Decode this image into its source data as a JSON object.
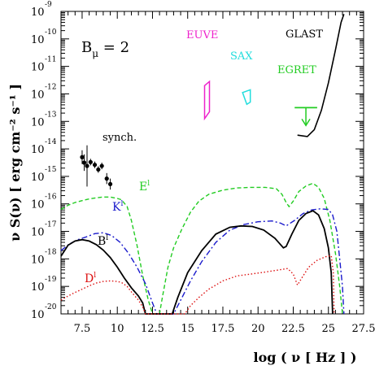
{
  "chart_data": {
    "type": "line",
    "ylabel": "ν S(ν) [ erg cm⁻² s⁻¹ ]",
    "xlabel": "log ( ν [ Hz ] )",
    "xlim": [
      6,
      27.5
    ],
    "ylim": [
      -20,
      -9
    ],
    "log_y": true,
    "grid": false,
    "x_ticks": [
      7.5,
      10,
      12.5,
      15,
      17.5,
      20,
      22.5,
      25,
      27.5
    ],
    "x_tick_labels": [
      "7.5",
      "10",
      "12.5",
      "15",
      "17.5",
      "20",
      "22.5",
      "25",
      "27.5"
    ],
    "y_tick_exponents": [
      -20,
      -19,
      -18,
      -17,
      -16,
      -15,
      -14,
      -13,
      -12,
      -11,
      -10,
      -9
    ],
    "y_tick_base": "10",
    "annotation": {
      "main": "B",
      "sub": "μ",
      "rest": " = 2"
    },
    "labels": {
      "synch": "synch.",
      "euve": "EUVE",
      "sax": "SAX",
      "egret": "EGRET",
      "glast": "GLAST",
      "E": "E",
      "K": "K",
      "B": "B",
      "D": "D",
      "curve_superscript": "l"
    },
    "colors": {
      "E": "#22cc22",
      "K": "#1a1acc",
      "B": "#000000",
      "D": "#dd1111",
      "euve": "#ee22cc",
      "sax": "#22dddd",
      "egret": "#22cc22",
      "glast": "#000000",
      "synch": "#000000"
    },
    "series": [
      {
        "name": "E",
        "style": "dashed",
        "points": [
          [
            6,
            -16.2
          ],
          [
            6.5,
            -16.05
          ],
          [
            7,
            -15.95
          ],
          [
            7.5,
            -15.88
          ],
          [
            8,
            -15.82
          ],
          [
            8.5,
            -15.78
          ],
          [
            9,
            -15.75
          ],
          [
            9.5,
            -15.75
          ],
          [
            10,
            -15.8
          ],
          [
            10.3,
            -15.85
          ],
          [
            10.7,
            -16.1
          ],
          [
            11,
            -16.6
          ],
          [
            11.4,
            -17.5
          ],
          [
            11.8,
            -18.6
          ],
          [
            12.2,
            -19.5
          ],
          [
            12.5,
            -20
          ],
          [
            13,
            -20
          ],
          [
            13.2,
            -19.4
          ],
          [
            13.6,
            -18.3
          ],
          [
            14,
            -17.6
          ],
          [
            14.6,
            -16.9
          ],
          [
            15.2,
            -16.3
          ],
          [
            15.8,
            -15.9
          ],
          [
            16.5,
            -15.65
          ],
          [
            17.5,
            -15.5
          ],
          [
            18.5,
            -15.42
          ],
          [
            19.5,
            -15.4
          ],
          [
            20.5,
            -15.4
          ],
          [
            21.3,
            -15.45
          ],
          [
            21.7,
            -15.65
          ],
          [
            22,
            -15.95
          ],
          [
            22.2,
            -16.1
          ],
          [
            22.5,
            -15.9
          ],
          [
            22.9,
            -15.55
          ],
          [
            23.4,
            -15.35
          ],
          [
            23.9,
            -15.25
          ],
          [
            24.3,
            -15.4
          ],
          [
            24.7,
            -15.8
          ],
          [
            25.1,
            -16.6
          ],
          [
            25.5,
            -17.8
          ],
          [
            25.8,
            -19
          ],
          [
            26,
            -20
          ]
        ]
      },
      {
        "name": "K",
        "style": "dashdot",
        "points": [
          [
            6,
            -17.7
          ],
          [
            6.6,
            -17.45
          ],
          [
            7.2,
            -17.3
          ],
          [
            7.8,
            -17.2
          ],
          [
            8.4,
            -17.08
          ],
          [
            9,
            -17.05
          ],
          [
            9.6,
            -17.15
          ],
          [
            10.2,
            -17.4
          ],
          [
            10.8,
            -17.8
          ],
          [
            11.4,
            -18.3
          ],
          [
            12,
            -18.9
          ],
          [
            12.5,
            -19.6
          ],
          [
            12.8,
            -20
          ],
          [
            14,
            -20
          ],
          [
            14.5,
            -19.5
          ],
          [
            15.2,
            -18.8
          ],
          [
            16,
            -18.1
          ],
          [
            17,
            -17.4
          ],
          [
            18,
            -16.95
          ],
          [
            19,
            -16.75
          ],
          [
            20,
            -16.65
          ],
          [
            21,
            -16.62
          ],
          [
            21.6,
            -16.7
          ],
          [
            22,
            -16.8
          ],
          [
            22.6,
            -16.6
          ],
          [
            23.2,
            -16.35
          ],
          [
            23.8,
            -16.22
          ],
          [
            24.4,
            -16.18
          ],
          [
            25,
            -16.2
          ],
          [
            25.3,
            -16.4
          ],
          [
            25.6,
            -17
          ],
          [
            25.8,
            -18
          ],
          [
            26,
            -19
          ],
          [
            26.1,
            -20
          ]
        ]
      },
      {
        "name": "B",
        "style": "solid",
        "points": [
          [
            6,
            -17.9
          ],
          [
            6.5,
            -17.5
          ],
          [
            7,
            -17.35
          ],
          [
            7.5,
            -17.3
          ],
          [
            8,
            -17.35
          ],
          [
            8.5,
            -17.48
          ],
          [
            9,
            -17.68
          ],
          [
            9.5,
            -17.95
          ],
          [
            10,
            -18.3
          ],
          [
            10.5,
            -18.7
          ],
          [
            11,
            -19.05
          ],
          [
            11.5,
            -19.35
          ],
          [
            11.8,
            -19.6
          ],
          [
            12,
            -20
          ],
          [
            13.9,
            -20
          ],
          [
            14.3,
            -19.4
          ],
          [
            15,
            -18.5
          ],
          [
            16,
            -17.7
          ],
          [
            17,
            -17.1
          ],
          [
            18,
            -16.85
          ],
          [
            18.8,
            -16.8
          ],
          [
            19.6,
            -16.82
          ],
          [
            20.4,
            -16.95
          ],
          [
            21.2,
            -17.25
          ],
          [
            21.8,
            -17.6
          ],
          [
            22,
            -17.55
          ],
          [
            22.4,
            -17.1
          ],
          [
            22.9,
            -16.6
          ],
          [
            23.4,
            -16.35
          ],
          [
            23.9,
            -16.25
          ],
          [
            24.3,
            -16.4
          ],
          [
            24.7,
            -16.9
          ],
          [
            25,
            -17.6
          ],
          [
            25.2,
            -18.5
          ],
          [
            25.3,
            -20
          ]
        ]
      },
      {
        "name": "D",
        "style": "dotted",
        "points": [
          [
            6,
            -19.5
          ],
          [
            6.5,
            -19.35
          ],
          [
            7,
            -19.22
          ],
          [
            7.5,
            -19.1
          ],
          [
            8,
            -18.98
          ],
          [
            8.5,
            -18.88
          ],
          [
            9,
            -18.82
          ],
          [
            9.5,
            -18.8
          ],
          [
            10,
            -18.82
          ],
          [
            10.3,
            -18.86
          ],
          [
            10.7,
            -19.0
          ],
          [
            11,
            -19.2
          ],
          [
            11.5,
            -19.5
          ],
          [
            11.8,
            -19.75
          ],
          [
            12,
            -20
          ],
          [
            14.8,
            -20
          ],
          [
            15.2,
            -19.7
          ],
          [
            15.8,
            -19.4
          ],
          [
            16.5,
            -19.1
          ],
          [
            17.5,
            -18.8
          ],
          [
            18.5,
            -18.62
          ],
          [
            19.5,
            -18.55
          ],
          [
            20.5,
            -18.48
          ],
          [
            21.5,
            -18.4
          ],
          [
            22.1,
            -18.35
          ],
          [
            22.5,
            -18.55
          ],
          [
            22.8,
            -18.95
          ],
          [
            23.1,
            -18.7
          ],
          [
            23.6,
            -18.3
          ],
          [
            24.2,
            -18.05
          ],
          [
            24.8,
            -17.92
          ],
          [
            25.2,
            -17.88
          ],
          [
            25.35,
            -18.5
          ],
          [
            25.4,
            -20
          ]
        ]
      }
    ],
    "synch_points": [
      {
        "x": 7.5,
        "y": -14.3,
        "err": 0.25
      },
      {
        "x": 7.65,
        "y": -14.5,
        "err": 0.3
      },
      {
        "x": 7.85,
        "y": -14.62,
        "err": 0.75
      },
      {
        "x": 8.1,
        "y": -14.48,
        "err": 0.12
      },
      {
        "x": 8.4,
        "y": -14.58,
        "err": 0.12
      },
      {
        "x": 8.65,
        "y": -14.75,
        "err": 0.12
      },
      {
        "x": 8.9,
        "y": -14.62,
        "err": 0.12
      },
      {
        "x": 9.25,
        "y": -15.08,
        "err": 0.2
      },
      {
        "x": 9.5,
        "y": -15.28,
        "err": 0.2
      }
    ],
    "euve_box": [
      [
        16.2,
        -11.7
      ],
      [
        16.55,
        -11.55
      ],
      [
        16.55,
        -12.65
      ],
      [
        16.2,
        -12.9
      ]
    ],
    "sax_box": [
      [
        18.9,
        -11.95
      ],
      [
        19.45,
        -11.85
      ],
      [
        19.45,
        -12.3
      ],
      [
        19.2,
        -12.38
      ]
    ],
    "egret_bar": {
      "x0": 22.6,
      "x1": 24.2,
      "y": -12.5
    },
    "egret_arrow": {
      "x": 23.4,
      "y_top": -12.5,
      "y_bottom": -13.15
    },
    "glast_curve": [
      [
        22.8,
        -13.5
      ],
      [
        23.5,
        -13.55
      ],
      [
        24,
        -13.3
      ],
      [
        24.5,
        -12.6
      ],
      [
        25,
        -11.6
      ],
      [
        25.5,
        -10.4
      ],
      [
        25.9,
        -9.4
      ],
      [
        26.1,
        -9.1
      ]
    ]
  }
}
